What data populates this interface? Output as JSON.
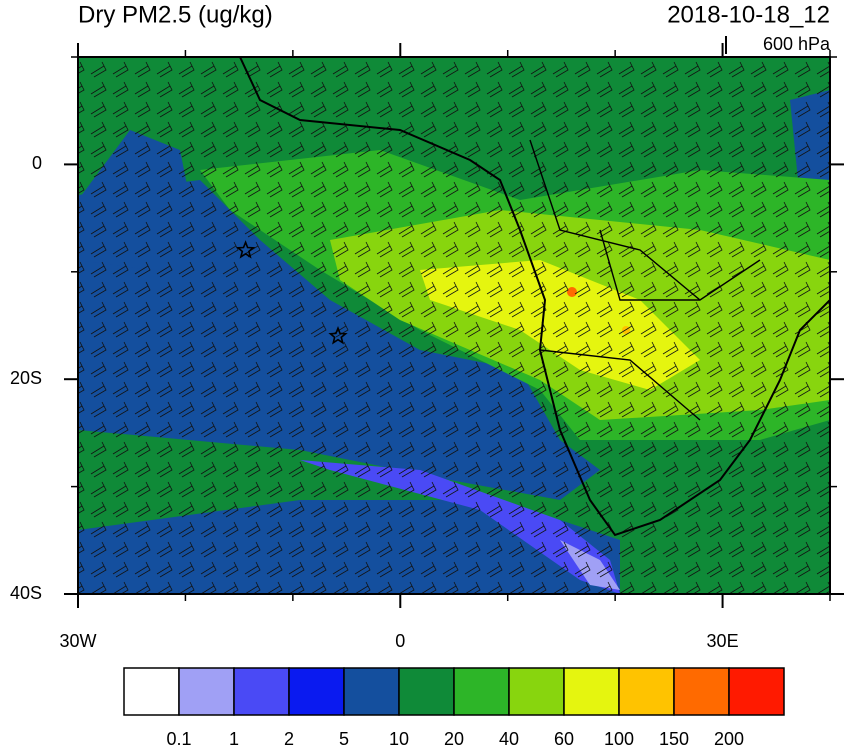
{
  "header": {
    "title": "Dry PM2.5 (ug/kg)",
    "date": "2018-10-18_12",
    "level": "600 hPa"
  },
  "map": {
    "xlim": [
      -30,
      40
    ],
    "ylim": [
      -40,
      10
    ],
    "xticks": [
      {
        "value": -30,
        "label": "30W"
      },
      0,
      {
        "value": 30,
        "label": "30E"
      }
    ],
    "yticks": [
      0,
      {
        "value": -20,
        "label": "20S"
      },
      {
        "value": -40,
        "label": "40S"
      }
    ],
    "xminorticks": [
      -20,
      -10,
      10,
      20,
      40
    ],
    "yminorticks": [
      -30,
      -10,
      10
    ],
    "markers": [
      {
        "lon": -14.4,
        "lat": -8
      },
      {
        "lon": -5.8,
        "lat": -16
      }
    ]
  },
  "colorbar": {
    "levels": [
      0.1,
      1,
      2,
      5,
      10,
      20,
      40,
      60,
      100,
      150,
      200
    ],
    "colors": [
      "#ffffff",
      "#a0a0f5",
      "#4a4af5",
      "#0a1af0",
      "#144f9e",
      "#0f8a38",
      "#2db528",
      "#88d50e",
      "#e5f50f",
      "#ffc300",
      "#ff6a00",
      "#ff1a00"
    ]
  }
}
